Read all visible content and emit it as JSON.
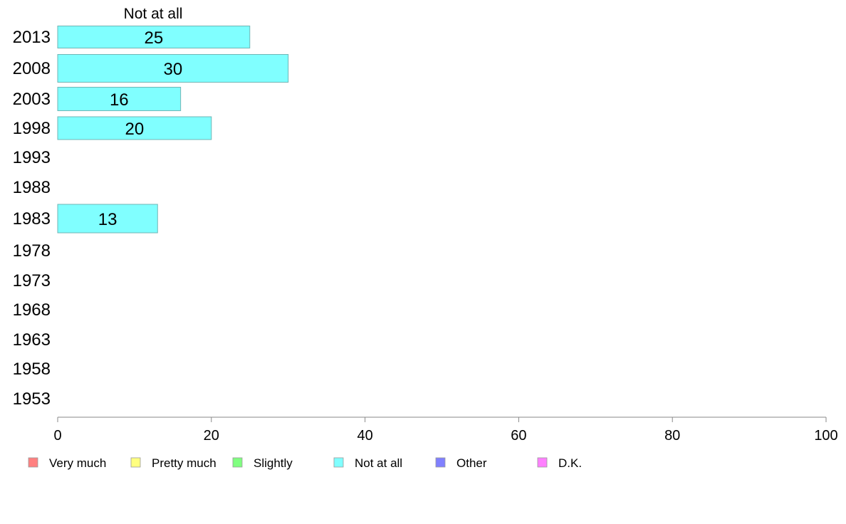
{
  "chart_data": {
    "type": "bar",
    "orientation": "horizontal",
    "series_title": "Not at all",
    "categories": [
      "2013",
      "2008",
      "2003",
      "1998",
      "1993",
      "1988",
      "1983",
      "1978",
      "1973",
      "1968",
      "1963",
      "1958",
      "1953"
    ],
    "series": [
      {
        "name": "Not at all",
        "color": "#80ffff",
        "values": [
          25,
          30,
          16,
          20,
          null,
          null,
          13,
          null,
          null,
          null,
          null,
          null,
          null
        ],
        "labels": [
          "25",
          "30",
          "16",
          "20",
          "",
          "",
          "13",
          "",
          "",
          "",
          "",
          "",
          ""
        ]
      }
    ],
    "xlim": [
      0,
      100
    ],
    "xticks": [
      "0",
      "20",
      "40",
      "60",
      "80",
      "100"
    ],
    "grid": false,
    "legend_position": "bottom",
    "legend": [
      {
        "label": "Very much",
        "color": "#ff8080"
      },
      {
        "label": "Pretty much",
        "color": "#ffff80"
      },
      {
        "label": "Slightly",
        "color": "#80ff80"
      },
      {
        "label": "Not at all",
        "color": "#80ffff"
      },
      {
        "label": "Other",
        "color": "#8080ff"
      },
      {
        "label": "D.K.",
        "color": "#ff80ff"
      }
    ]
  }
}
